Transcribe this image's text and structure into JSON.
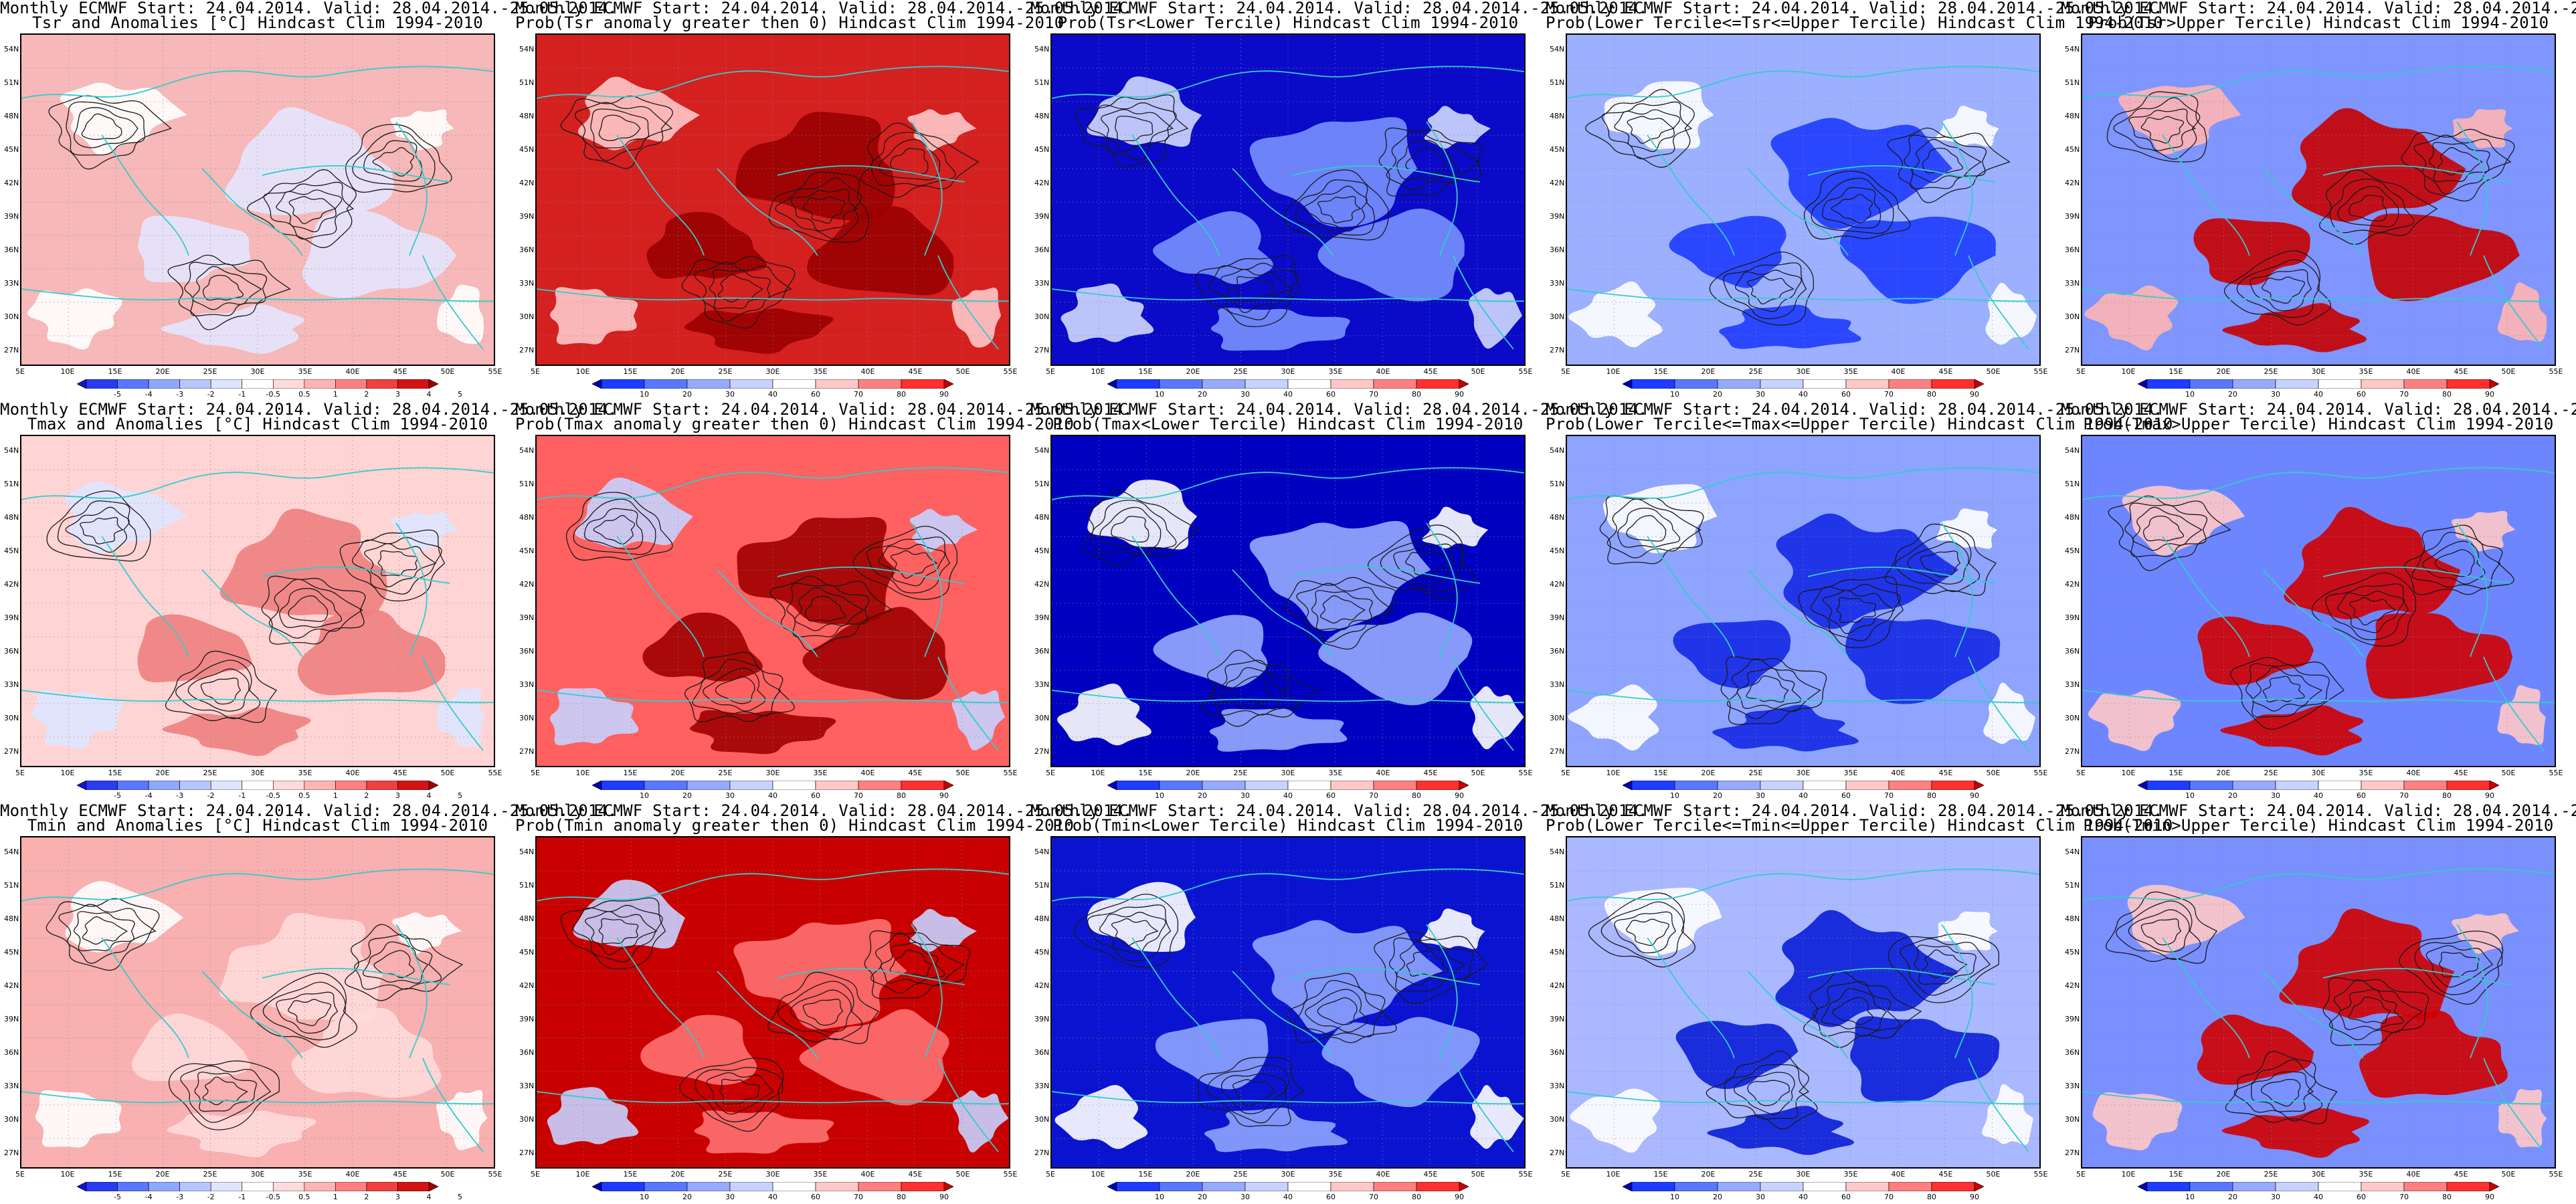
{
  "header": {
    "title_line1": "Monthly ECMWF Start: 24.04.2014. Valid: 28.04.2014.-25.05.2014."
  },
  "map": {
    "lat_ticks": [
      "54N",
      "51N",
      "48N",
      "45N",
      "42N",
      "39N",
      "36N",
      "33N",
      "30N",
      "27N"
    ],
    "lon_ticks": [
      "5E",
      "10E",
      "15E",
      "20E",
      "25E",
      "30E",
      "35E",
      "40E",
      "45E",
      "50E",
      "55E"
    ],
    "coastline_color": "#33cccc",
    "contour_color": "#1a1a1a"
  },
  "colorbars": {
    "anomaly": {
      "labels": [
        "-5",
        "-4",
        "-3",
        "-2",
        "-1",
        "-0.5",
        "0.5",
        "1",
        "2",
        "3",
        "4",
        "5"
      ],
      "colors": [
        "#1414d2",
        "#2a3cf0",
        "#5a78ff",
        "#8ea8ff",
        "#b8c6ff",
        "#dfe5ff",
        "#ffffff",
        "#ffdada",
        "#ffb4b4",
        "#ff8080",
        "#f04040",
        "#d21414",
        "#a00000"
      ]
    },
    "probability": {
      "labels": [
        "10",
        "20",
        "30",
        "40",
        "60",
        "70",
        "80",
        "90"
      ],
      "colors": [
        "#0000b4",
        "#1e3cff",
        "#5a78ff",
        "#96aaff",
        "#c8d2ff",
        "#ffffff",
        "#ffc8c8",
        "#ff8080",
        "#ff3030",
        "#c80000"
      ]
    }
  },
  "panels": [
    {
      "title_line2": "Tsr and Anomalies [°C] Hindcast Clim 1994-2010",
      "colorbar": "anomaly",
      "field_color": "#f6b8b8",
      "secondary_color": "#e5e5ff",
      "accent_color": "#ffffff"
    },
    {
      "title_line2": "Prob(Tsr anomaly greater then 0) Hindcast Clim 1994-2010",
      "colorbar": "probability",
      "field_color": "#d52020",
      "secondary_color": "#9a0000",
      "accent_color": "#ffc8c8"
    },
    {
      "title_line2": "Prob(Tsr<Lower Tercile) Hindcast Clim 1994-2010",
      "colorbar": "probability",
      "field_color": "#0a0ac8",
      "secondary_color": "#7790ff",
      "accent_color": "#d0d8ff"
    },
    {
      "title_line2": "Prob(Lower Tercile<=Tsr<=Upper Tercile) Hindcast Clim 1994-2010",
      "colorbar": "probability",
      "field_color": "#9cb0ff",
      "secondary_color": "#1e3cff",
      "accent_color": "#ffffff"
    },
    {
      "title_line2": "Prob(Tsr>Upper Tercile) Hindcast Clim 1994-2010",
      "colorbar": "probability",
      "field_color": "#7f95ff",
      "secondary_color": "#c80000",
      "accent_color": "#ffb4b4"
    },
    {
      "title_line2": "Tmax and Anomalies [°C] Hindcast Clim 1994-2010",
      "colorbar": "anomaly",
      "field_color": "#ffd4d4",
      "secondary_color": "#f08080",
      "accent_color": "#dfe5ff"
    },
    {
      "title_line2": "Prob(Tmax anomaly greater then 0) Hindcast Clim 1994-2010",
      "colorbar": "probability",
      "field_color": "#ff6060",
      "secondary_color": "#a00000",
      "accent_color": "#c8d2ff"
    },
    {
      "title_line2": "Prob(Tmax<Lower Tercile) Hindcast Clim 1994-2010",
      "colorbar": "probability",
      "field_color": "#0000c0",
      "secondary_color": "#96aaff",
      "accent_color": "#ffffff"
    },
    {
      "title_line2": "Prob(Lower Tercile<=Tmax<=Upper Tercile) Hindcast Clim 1994-2010",
      "colorbar": "probability",
      "field_color": "#8ea4ff",
      "secondary_color": "#1428e6",
      "accent_color": "#ffffff"
    },
    {
      "title_line2": "Prob(Tmax>Upper Tercile) Hindcast Clim 1994-2010",
      "colorbar": "probability",
      "field_color": "#6d86ff",
      "secondary_color": "#d00000",
      "accent_color": "#ffc8c8"
    },
    {
      "title_line2": "Tmin and Anomalies [°C] Hindcast Clim 1994-2010",
      "colorbar": "anomaly",
      "field_color": "#f8b0b0",
      "secondary_color": "#ffdada",
      "accent_color": "#ffffff"
    },
    {
      "title_line2": "Prob(Tmin anomaly greater then 0) Hindcast Clim 1994-2010",
      "colorbar": "probability",
      "field_color": "#c80000",
      "secondary_color": "#ff7070",
      "accent_color": "#c8d2ff"
    },
    {
      "title_line2": "Prob(Tmin<Lower Tercile) Hindcast Clim 1994-2010",
      "colorbar": "probability",
      "field_color": "#0a14d0",
      "secondary_color": "#8ea4ff",
      "accent_color": "#ffffff"
    },
    {
      "title_line2": "Prob(Lower Tercile<=Tmin<=Upper Tercile) Hindcast Clim 1994-2010",
      "colorbar": "probability",
      "field_color": "#aab8ff",
      "secondary_color": "#0a1ed8",
      "accent_color": "#ffffff"
    },
    {
      "title_line2": "Prob(Tmin>Upper Tercile) Hindcast Clim 1994-2010",
      "colorbar": "probability",
      "field_color": "#7a90ff",
      "secondary_color": "#d00000",
      "accent_color": "#ffc8c8"
    }
  ]
}
